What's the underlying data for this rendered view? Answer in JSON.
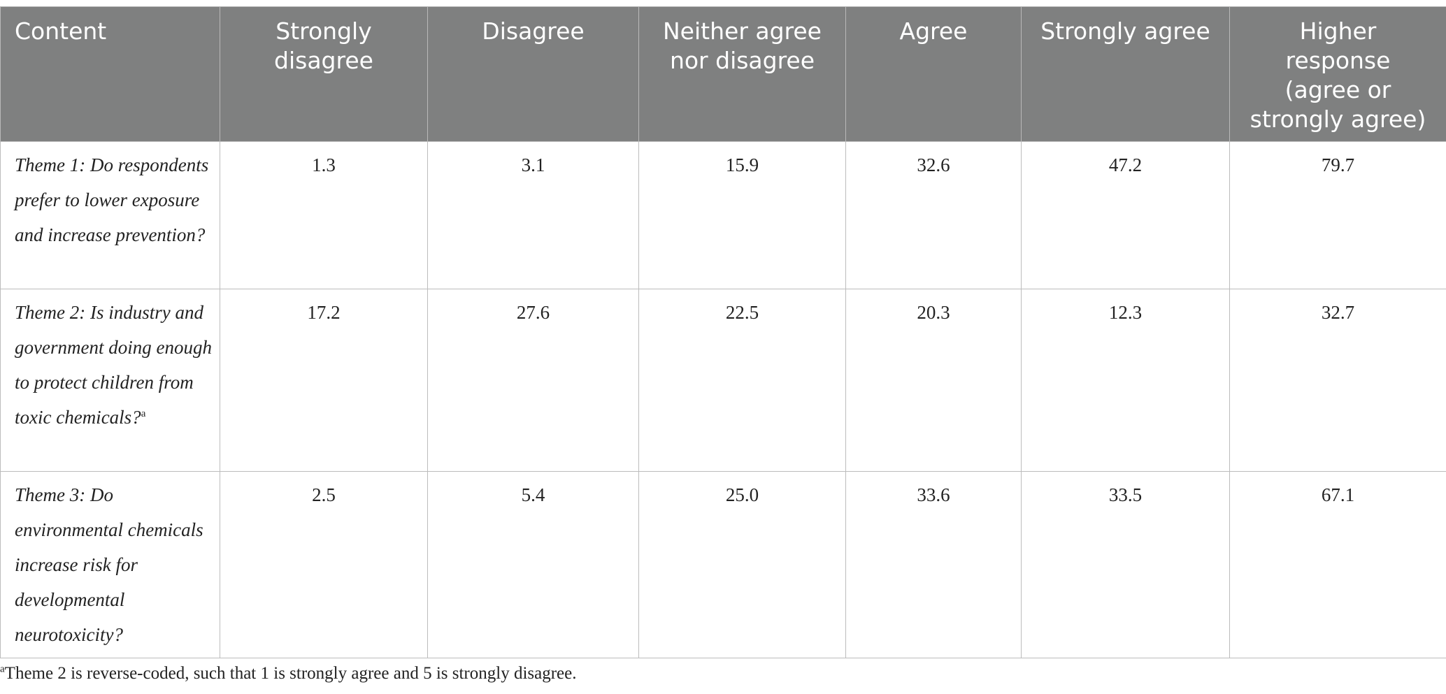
{
  "table": {
    "header": [
      "Content",
      "Strongly disagree",
      "Disagree",
      "Neither agree nor disagree",
      "Agree",
      "Strongly agree",
      "Higher response (agree or strongly agree)"
    ],
    "rows": [
      {
        "content": "Theme 1: Do respondents prefer to lower exposure and increase prevention?",
        "values": [
          "1.3",
          "3.1",
          "15.9",
          "32.6",
          "47.2",
          "79.7"
        ]
      },
      {
        "content": "Theme 2: Is industry and government doing enough to protect children from toxic chemicals?",
        "marker": "a",
        "values": [
          "17.2",
          "27.6",
          "22.5",
          "20.3",
          "12.3",
          "32.7"
        ]
      },
      {
        "content": "Theme 3: Do environmental chemicals increase risk for developmental neurotoxicity?",
        "values": [
          "2.5",
          "5.4",
          "25.0",
          "33.6",
          "33.5",
          "67.1"
        ]
      }
    ]
  },
  "footnote": {
    "marker": "a",
    "text": "Theme 2 is reverse-coded, such that 1 is strongly agree and 5 is strongly disagree."
  }
}
